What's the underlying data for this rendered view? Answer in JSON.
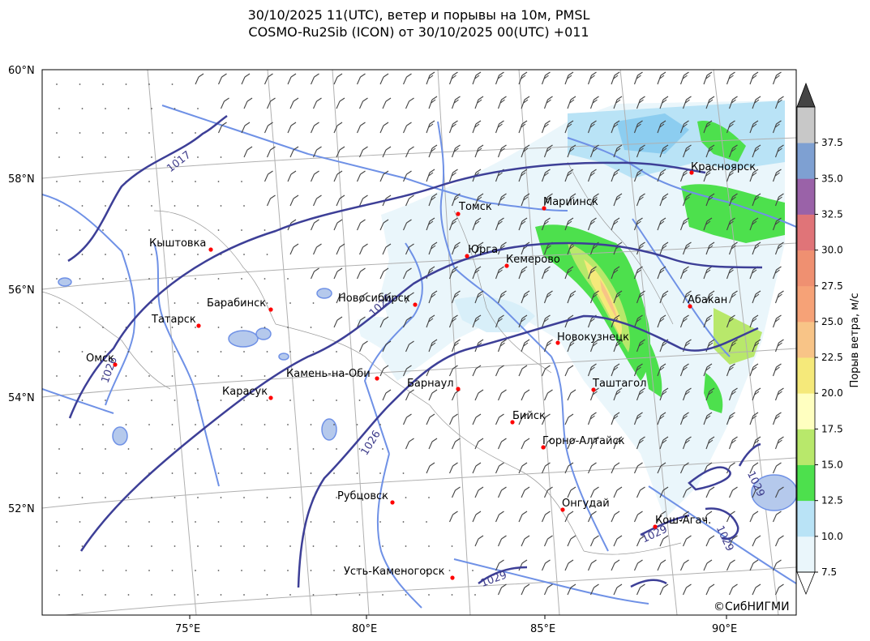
{
  "title": {
    "line1": "30/10/2025 11(UTC), ветер и порывы на 10м, PMSL",
    "line2": "COSMO-Ru2Sib (ICON) от 30/10/2025 00(UTC) +011"
  },
  "copyright": "©СибНИГМИ",
  "axes": {
    "lat_ticks": [
      "60°N",
      "58°N",
      "56°N",
      "54°N",
      "52°N"
    ],
    "lon_ticks": [
      "75°E",
      "80°E",
      "85°E",
      "90°E"
    ]
  },
  "colorbar": {
    "title": "Порыв ветра, м/с",
    "ticks": [
      "7.5",
      "10.0",
      "12.5",
      "15.0",
      "17.5",
      "20.0",
      "22.5",
      "25.0",
      "27.5",
      "30.0",
      "32.5",
      "35.0",
      "37.5"
    ],
    "colors": [
      "#eaf6fb",
      "#b9e3f6",
      "#4de04d",
      "#b8e86b",
      "#ffffc0",
      "#f5e97a",
      "#f8c487",
      "#f6a277",
      "#ef9071",
      "#e07478",
      "#9a62a8",
      "#7ea0d2",
      "#c8c8c8"
    ],
    "extend_max_color": "#444444",
    "extend_min_color": "#ffffff"
  },
  "isobars": [
    {
      "label": "1017"
    },
    {
      "label": "1026"
    },
    {
      "label": "1026"
    },
    {
      "label": "1026"
    },
    {
      "label": "1029"
    },
    {
      "label": "1029"
    },
    {
      "label": "1029"
    },
    {
      "label": "1029"
    }
  ],
  "cities": [
    {
      "name": "Красноярск"
    },
    {
      "name": "Томск"
    },
    {
      "name": "Мариинск"
    },
    {
      "name": "Кыштовка"
    },
    {
      "name": "Юрга"
    },
    {
      "name": "Кемерово"
    },
    {
      "name": "Новосибирск"
    },
    {
      "name": "Барабинск"
    },
    {
      "name": "Абакан"
    },
    {
      "name": "Татарск"
    },
    {
      "name": "Новокузнецк"
    },
    {
      "name": "Омск"
    },
    {
      "name": "Камень-на-Оби"
    },
    {
      "name": "Барнаул"
    },
    {
      "name": "Таштагол"
    },
    {
      "name": "Карасук"
    },
    {
      "name": "Бийск"
    },
    {
      "name": "Горно-Алтайск"
    },
    {
      "name": "Рубцовск"
    },
    {
      "name": "Онгудай"
    },
    {
      "name": "Кош-Агач."
    },
    {
      "name": "Усть-Каменогорск"
    }
  ]
}
